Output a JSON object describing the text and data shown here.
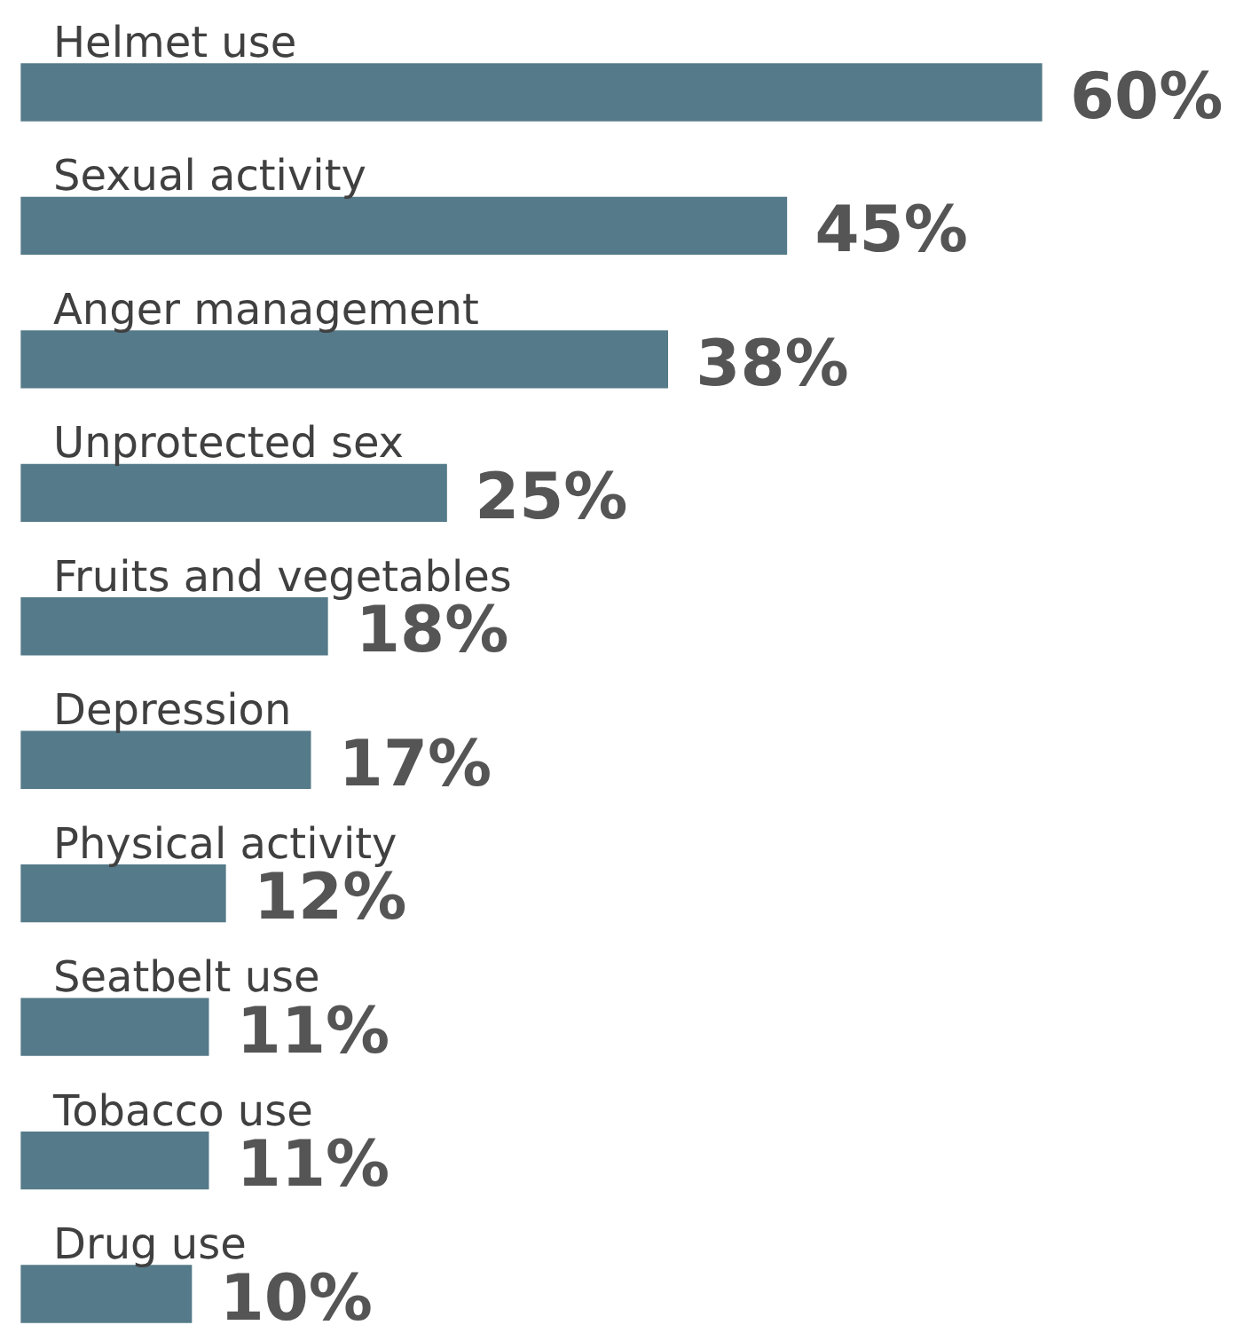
{
  "chart_data": {
    "type": "bar",
    "orientation": "horizontal",
    "categories": [
      "Helmet use",
      "Sexual activity",
      "Anger management",
      "Unprotected sex",
      "Fruits and vegetables",
      "Depression",
      "Physical activity",
      "Seatbelt use",
      "Tobacco use",
      "Drug use"
    ],
    "values": [
      60,
      45,
      38,
      25,
      18,
      17,
      12,
      11,
      11,
      10
    ],
    "value_labels": [
      "60%",
      "45%",
      "38%",
      "25%",
      "18%",
      "17%",
      "12%",
      "11%",
      "11%",
      "10%"
    ],
    "color": "#557a89"
  }
}
